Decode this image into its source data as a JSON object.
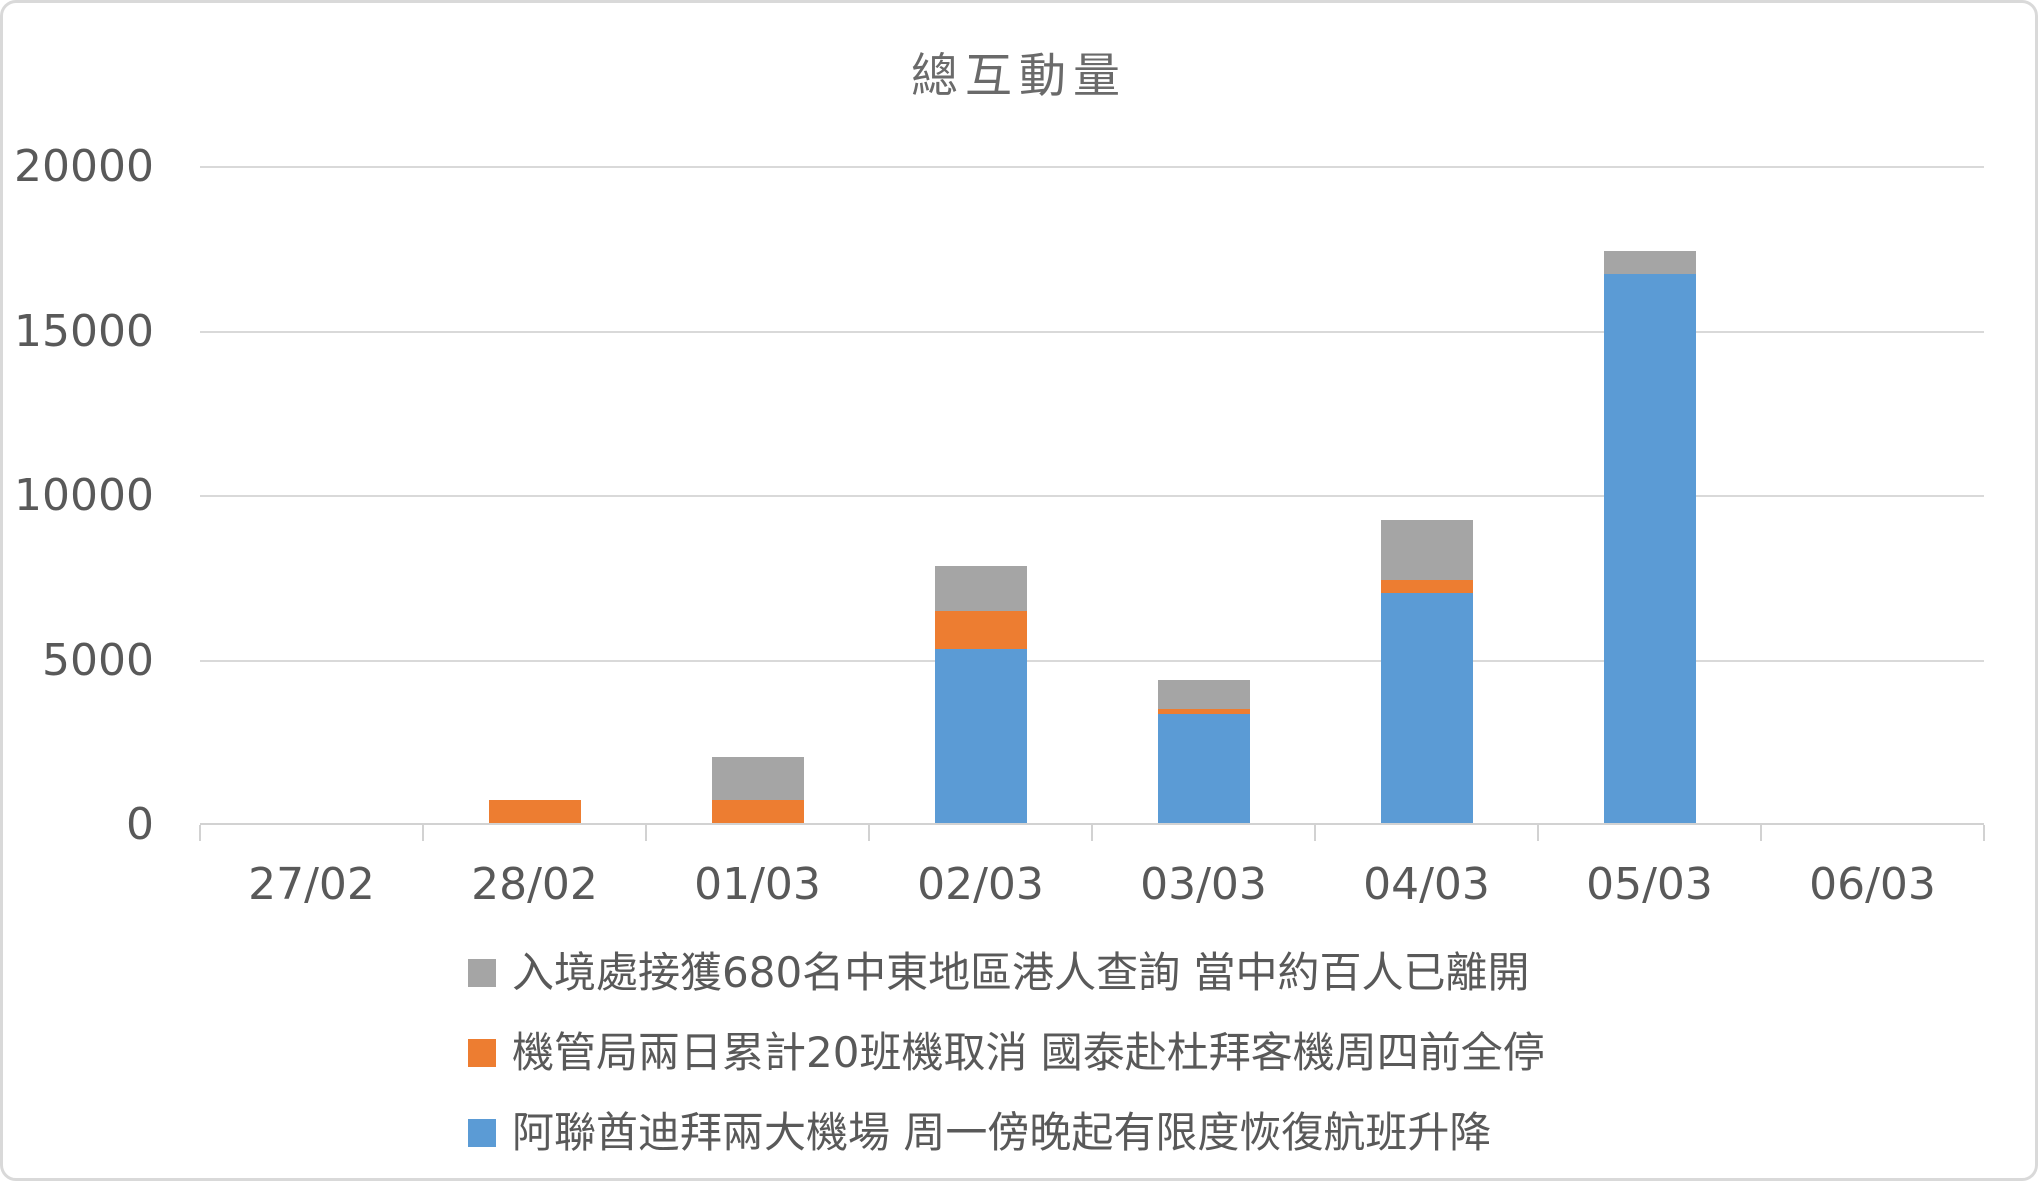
{
  "chart_data": {
    "type": "bar",
    "stacked": true,
    "title": "總互動量",
    "categories": [
      "27/02",
      "28/02",
      "01/03",
      "02/03",
      "03/03",
      "04/03",
      "05/03",
      "06/03"
    ],
    "series": [
      {
        "name": "入境處接獲680名中東地區港人查詢 當中約百人已離開",
        "color": "#A5A5A5",
        "values": [
          0,
          0,
          1300,
          1350,
          900,
          1800,
          700,
          0
        ]
      },
      {
        "name": "機管局兩日累計20班機取消 國泰赴杜拜客機周四前全停",
        "color": "#ED7D31",
        "values": [
          0,
          700,
          700,
          1150,
          160,
          400,
          0,
          0
        ]
      },
      {
        "name": "阿聯酋迪拜兩大機場 周一傍晚起有限度恢復航班升降",
        "color": "#5B9BD5",
        "values": [
          0,
          0,
          0,
          5300,
          3300,
          7000,
          16700,
          0
        ]
      }
    ],
    "stack_order_bottom_to_top": [
      2,
      1,
      0
    ],
    "y_ticks": [
      0,
      5000,
      10000,
      15000,
      20000
    ],
    "y_tick_labels": [
      "20000",
      "15000",
      "10000",
      "5000",
      "0"
    ],
    "ylim": [
      0,
      20000
    ],
    "grid": true,
    "legend_position": "bottom",
    "colors": {
      "grid": "#D9D9D9",
      "axis": "#D2D2D2",
      "text": "#595959",
      "title": "#6A6A6A",
      "background": "#FFFFFF",
      "border": "#D9D9D9"
    }
  }
}
